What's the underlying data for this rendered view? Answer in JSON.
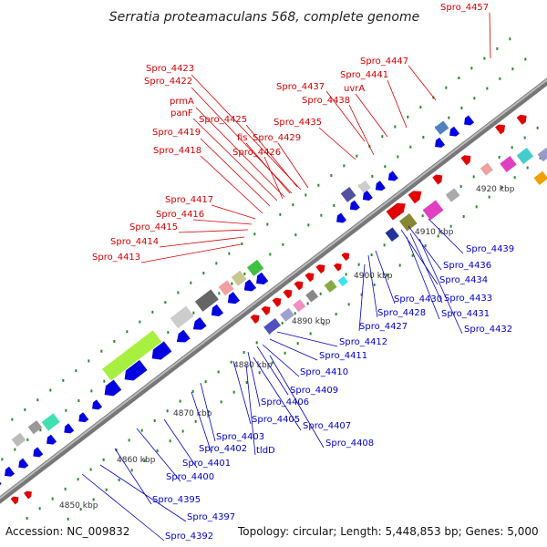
{
  "title": "Serratia proteamaculans 568, complete genome",
  "footer": {
    "accession": "Accession: NC_009832",
    "topology": "Topology: circular; Length: 5,448,853 bp; Genes: 5,000"
  },
  "colors": {
    "forward_gene": "#e00000",
    "reverse_gene": "#0000e0",
    "forward_label": "#d40000",
    "reverse_label": "#0000c8"
  },
  "axis": {
    "unit": "kbp",
    "ticks": [
      "4850 kbp",
      "4860 kbp",
      "4870 kbp",
      "4880 kbp",
      "4890 kbp",
      "4900 kbp",
      "4910 kbp",
      "4920 kbp"
    ]
  },
  "labels_top": [
    "Spro_4457",
    "Spro_4447",
    "Spro_4441",
    "uvrA",
    "Spro_4437",
    "Spro_4438",
    "Spro_4435",
    "Spro_4423",
    "Spro_4422",
    "prmA",
    "panF",
    "Spro_4425",
    "Spro_4419",
    "fis",
    "Spro_4429",
    "Spro_4426",
    "Spro_4418",
    "Spro_4417",
    "Spro_4416",
    "Spro_4415",
    "Spro_4414",
    "Spro_4413"
  ],
  "labels_bottom": [
    "Spro_4439",
    "Spro_4436",
    "Spro_4434",
    "Spro_4433",
    "Spro_4430",
    "Spro_4431",
    "Spro_4428",
    "Spro_4432",
    "Spro_4427",
    "Spro_4412",
    "Spro_4411",
    "Spro_4410",
    "Spro_4409",
    "Spro_4406",
    "Spro_4405",
    "Spro_4407",
    "Spro_4403",
    "Spro_4408",
    "Spro_4402",
    "tldD",
    "Spro_4401",
    "Spro_4400",
    "Spro_4395",
    "Spro_4397",
    "Spro_4392"
  ]
}
